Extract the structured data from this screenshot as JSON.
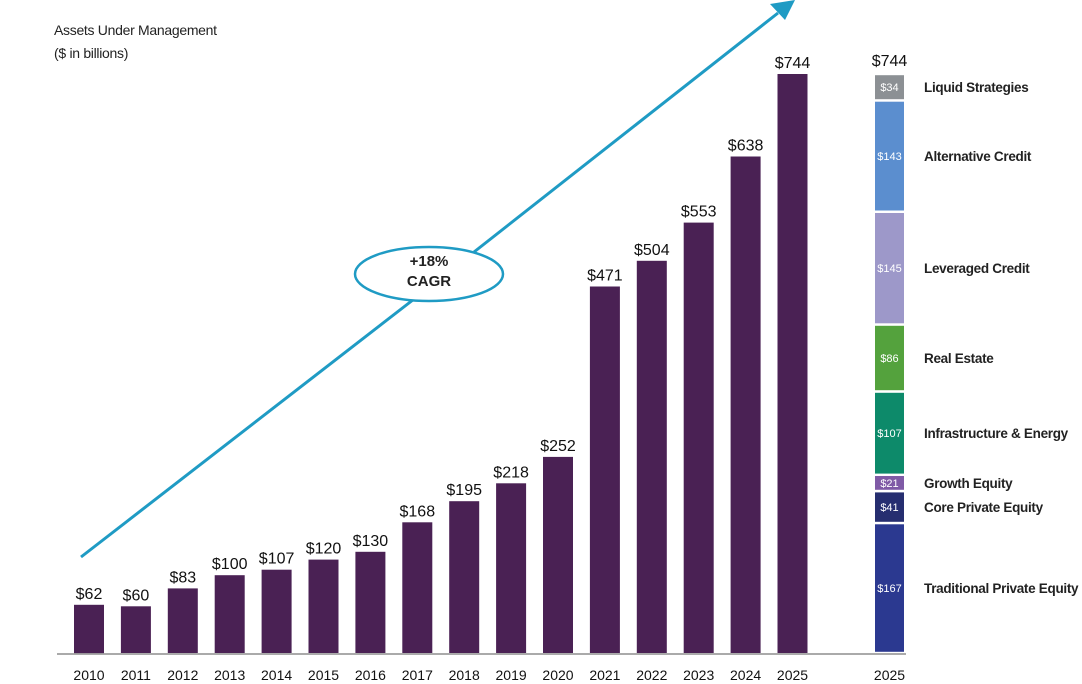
{
  "chart_data": [
    {
      "type": "bar",
      "ylabel_lines": [
        "Assets Under Management",
        "($ in billions)"
      ],
      "categories": [
        "2010",
        "2011",
        "2012",
        "2013",
        "2014",
        "2015",
        "2016",
        "2017",
        "2018",
        "2019",
        "2020",
        "2021",
        "2022",
        "2023",
        "2024",
        "2025"
      ],
      "values": [
        62,
        60,
        83,
        100,
        107,
        120,
        130,
        168,
        195,
        218,
        252,
        471,
        504,
        553,
        638,
        744
      ],
      "value_labels": [
        "$62",
        "$60",
        "$83",
        "$100",
        "$107",
        "$120",
        "$130",
        "$168",
        "$195",
        "$218",
        "$252",
        "$471",
        "$504",
        "$553",
        "$638",
        "$744"
      ],
      "ylim": [
        0,
        744
      ],
      "bar_color": "#4a2154",
      "annotation": {
        "line1": "+18%",
        "line2": "CAGR",
        "arrow_color": "#1f9bc4"
      }
    },
    {
      "type": "bar",
      "stacked": true,
      "category": "2025",
      "total_label": "$744",
      "segments": [
        {
          "name": "Traditional Private Equity",
          "value": 167,
          "label": "$167",
          "color": "#2b3990"
        },
        {
          "name": "Core Private Equity",
          "value": 41,
          "label": "$41",
          "color": "#262e70"
        },
        {
          "name": "Growth Equity",
          "value": 21,
          "label": "$21",
          "color": "#7f5aa6"
        },
        {
          "name": "Infrastructure & Energy",
          "value": 107,
          "label": "$107",
          "color": "#0d8a6a"
        },
        {
          "name": "Real Estate",
          "value": 86,
          "label": "$86",
          "color": "#54a23d"
        },
        {
          "name": "Leveraged Credit",
          "value": 145,
          "label": "$145",
          "color": "#9d98c9"
        },
        {
          "name": "Alternative Credit",
          "value": 143,
          "label": "$143",
          "color": "#5b8ecf"
        },
        {
          "name": "Liquid Strategies",
          "value": 34,
          "label": "$34",
          "color": "#8c9094"
        }
      ]
    }
  ]
}
